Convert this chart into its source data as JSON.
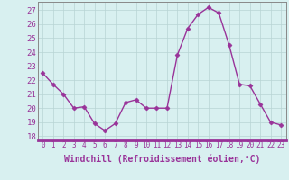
{
  "x": [
    0,
    1,
    2,
    3,
    4,
    5,
    6,
    7,
    8,
    9,
    10,
    11,
    12,
    13,
    14,
    15,
    16,
    17,
    18,
    19,
    20,
    21,
    22,
    23
  ],
  "y": [
    22.5,
    21.7,
    21.0,
    20.0,
    20.1,
    18.9,
    18.4,
    18.9,
    20.4,
    20.6,
    20.0,
    20.0,
    20.0,
    23.8,
    25.7,
    26.7,
    27.2,
    26.8,
    24.5,
    21.7,
    21.6,
    20.3,
    19.0,
    18.8
  ],
  "line_color": "#993399",
  "marker": "D",
  "markersize": 2.5,
  "linewidth": 1.0,
  "xlabel": "Windchill (Refroidissement éolien,°C)",
  "xlabel_fontsize": 7,
  "bg_color": "#d8f0f0",
  "grid_color": "#b8d4d4",
  "tick_color": "#993399",
  "ylabel_ticks": [
    18,
    19,
    20,
    21,
    22,
    23,
    24,
    25,
    26,
    27
  ],
  "xlabel_ticks": [
    0,
    1,
    2,
    3,
    4,
    5,
    6,
    7,
    8,
    9,
    10,
    11,
    12,
    13,
    14,
    15,
    16,
    17,
    18,
    19,
    20,
    21,
    22,
    23
  ],
  "ylim": [
    17.7,
    27.6
  ],
  "xlim": [
    -0.5,
    23.5
  ],
  "xtick_fontsize": 5.5,
  "ytick_fontsize": 6.5,
  "spine_color": "#888888",
  "bottom_bar_color": "#993399"
}
